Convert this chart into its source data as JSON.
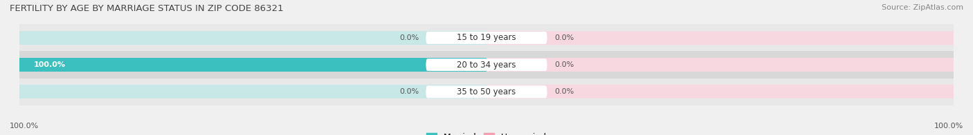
{
  "title": "FERTILITY BY AGE BY MARRIAGE STATUS IN ZIP CODE 86321",
  "source": "Source: ZipAtlas.com",
  "categories": [
    "15 to 19 years",
    "20 to 34 years",
    "35 to 50 years"
  ],
  "married_values": [
    0.0,
    100.0,
    0.0
  ],
  "unmarried_values": [
    0.0,
    0.0,
    0.0
  ],
  "married_color": "#3bbfbf",
  "unmarried_color": "#f4a0b0",
  "bg_color": "#f0f0f0",
  "row_colors": [
    "#e8e8e8",
    "#d8d8d8",
    "#e8e8e8"
  ],
  "bar_bg_left_color": "#c8e8e8",
  "bar_bg_right_color": "#f8d8e0",
  "bar_height": 0.52,
  "xlim_left": -100,
  "xlim_right": 100,
  "title_fontsize": 9.5,
  "source_fontsize": 8,
  "label_fontsize": 8.5,
  "value_fontsize": 8,
  "legend_fontsize": 9,
  "x_left_label": "100.0%",
  "x_right_label": "100.0%"
}
